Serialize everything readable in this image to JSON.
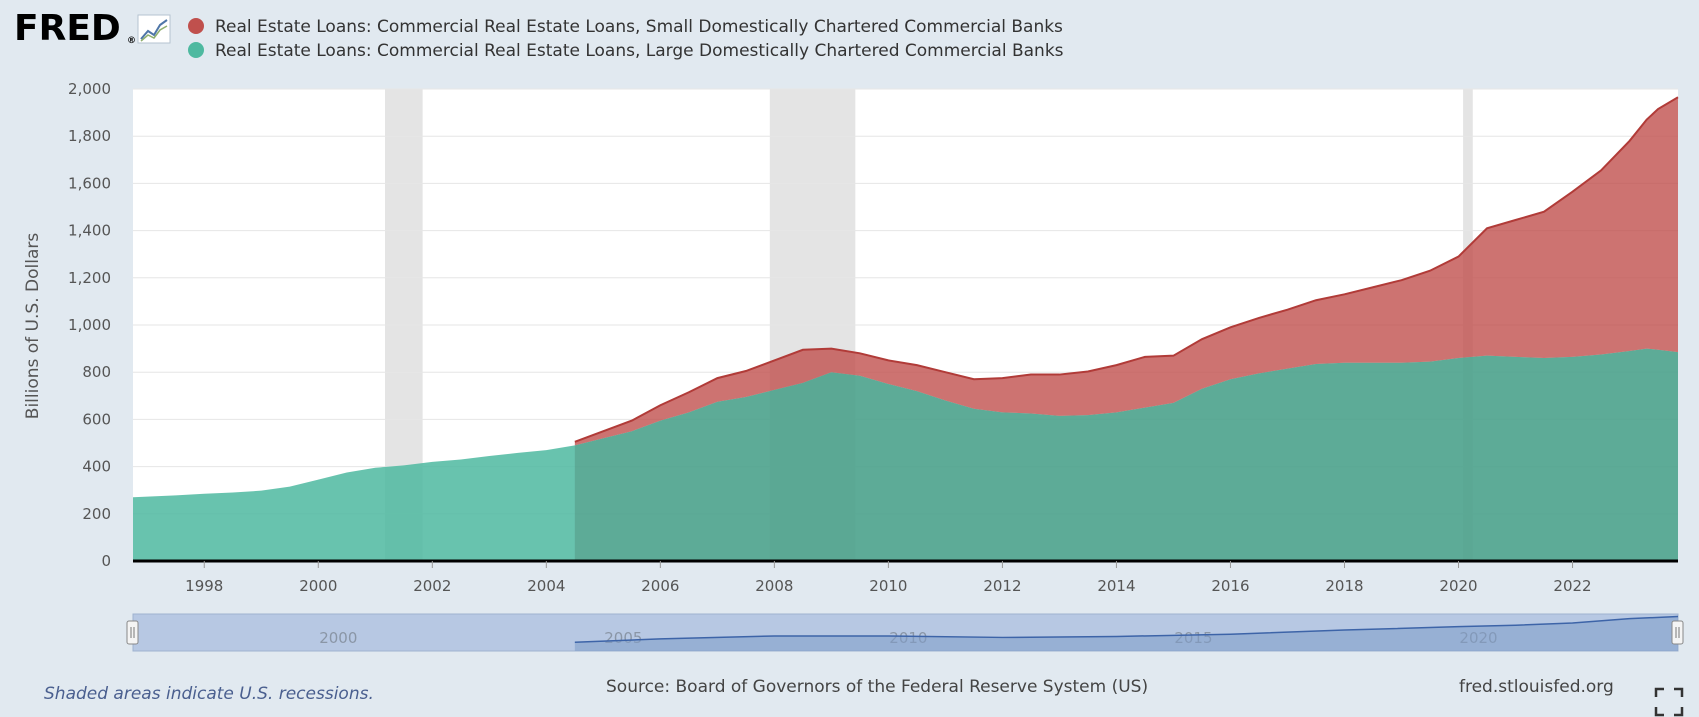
{
  "brand": {
    "logo_text": "FRED",
    "registered_mark": "®",
    "logo_icon": "line-chart-icon"
  },
  "footer": {
    "recession_note": "Shaded areas indicate U.S. recessions.",
    "source": "Source: Board of Governors of the Federal Reserve System (US)",
    "site": "fred.stlouisfed.org",
    "fullscreen_icon": "fullscreen-icon"
  },
  "navigator": {
    "labels": [
      "2000",
      "2005",
      "2010",
      "2015",
      "2020"
    ]
  },
  "colors": {
    "small_banks": "#c0504d",
    "large_banks": "#4eb9a0",
    "recession": "#e4e4e4",
    "background": "#e1e9f0",
    "plot": "#ffffff"
  },
  "chart_data": {
    "type": "area",
    "stacked": true,
    "ylabel": "Billions of U.S. Dollars",
    "xlabel": "",
    "ylim": [
      0,
      2000
    ],
    "xlim": [
      1996.75,
      2023.85
    ],
    "y_ticks": [
      0,
      200,
      400,
      600,
      800,
      1000,
      1200,
      1400,
      1600,
      1800,
      2000
    ],
    "y_tick_labels": [
      "0",
      "200",
      "400",
      "600",
      "800",
      "1,000",
      "1,200",
      "1,400",
      "1,600",
      "1,800",
      "2,000"
    ],
    "x_ticks": [
      1998,
      2000,
      2002,
      2004,
      2006,
      2008,
      2010,
      2012,
      2014,
      2016,
      2018,
      2020,
      2022
    ],
    "x_tick_labels": [
      "1998",
      "2000",
      "2002",
      "2004",
      "2006",
      "2008",
      "2010",
      "2012",
      "2014",
      "2016",
      "2018",
      "2020",
      "2022"
    ],
    "grid": true,
    "legend_position": "top-left",
    "recessions": [
      [
        2001.17,
        2001.83
      ],
      [
        2007.92,
        2009.42
      ],
      [
        2020.08,
        2020.25
      ]
    ],
    "series": [
      {
        "name": "Real Estate Loans: Commercial Real Estate Loans, Small Domestically Chartered Commercial Banks",
        "x": [
          2004.5,
          2005.0,
          2005.5,
          2006.0,
          2006.5,
          2007.0,
          2007.5,
          2008.0,
          2008.5,
          2009.0,
          2009.5,
          2010.0,
          2010.5,
          2011.0,
          2011.5,
          2012.0,
          2012.5,
          2013.0,
          2013.5,
          2014.0,
          2014.5,
          2015.0,
          2015.5,
          2016.0,
          2016.5,
          2017.0,
          2017.5,
          2018.0,
          2018.5,
          2019.0,
          2019.5,
          2020.0,
          2020.5,
          2021.0,
          2021.5,
          2022.0,
          2022.5,
          2023.0,
          2023.3,
          2023.5,
          2023.85
        ],
        "values": [
          15,
          30,
          45,
          65,
          85,
          100,
          110,
          125,
          140,
          100,
          95,
          100,
          110,
          120,
          125,
          145,
          165,
          175,
          185,
          200,
          215,
          200,
          210,
          220,
          235,
          250,
          270,
          290,
          320,
          350,
          385,
          430,
          540,
          580,
          620,
          700,
          780,
          890,
          970,
          1020,
          1080
        ]
      },
      {
        "name": "Real Estate Loans: Commercial Real Estate Loans, Large Domestically Chartered Commercial Banks",
        "x": [
          1996.75,
          1997.0,
          1997.5,
          1998.0,
          1998.5,
          1999.0,
          1999.5,
          2000.0,
          2000.5,
          2001.0,
          2001.5,
          2002.0,
          2002.5,
          2003.0,
          2003.5,
          2004.0,
          2004.5,
          2005.0,
          2005.5,
          2006.0,
          2006.5,
          2007.0,
          2007.5,
          2008.0,
          2008.5,
          2009.0,
          2009.5,
          2010.0,
          2010.5,
          2011.0,
          2011.5,
          2012.0,
          2012.5,
          2013.0,
          2013.5,
          2014.0,
          2014.5,
          2015.0,
          2015.5,
          2016.0,
          2016.5,
          2017.0,
          2017.5,
          2018.0,
          2018.5,
          2019.0,
          2019.5,
          2020.0,
          2020.5,
          2021.0,
          2021.5,
          2022.0,
          2022.5,
          2023.0,
          2023.3,
          2023.5,
          2023.85
        ],
        "values": [
          270,
          273,
          278,
          285,
          290,
          298,
          315,
          345,
          375,
          395,
          405,
          420,
          430,
          445,
          458,
          470,
          490,
          520,
          550,
          595,
          630,
          675,
          695,
          725,
          755,
          800,
          785,
          750,
          720,
          680,
          645,
          630,
          625,
          615,
          618,
          630,
          650,
          670,
          730,
          770,
          795,
          815,
          835,
          840,
          840,
          840,
          845,
          860,
          870,
          865,
          860,
          865,
          875,
          890,
          900,
          895,
          885
        ]
      }
    ],
    "navigator_series": {
      "x": [
        2004.5,
        2006,
        2008,
        2010,
        2012,
        2014,
        2016,
        2018,
        2020,
        2021,
        2022,
        2023,
        2023.85
      ],
      "values": [
        500,
        690,
        860,
        860,
        775,
        830,
        960,
        1200,
        1390,
        1470,
        1600,
        1850,
        1970
      ]
    }
  }
}
